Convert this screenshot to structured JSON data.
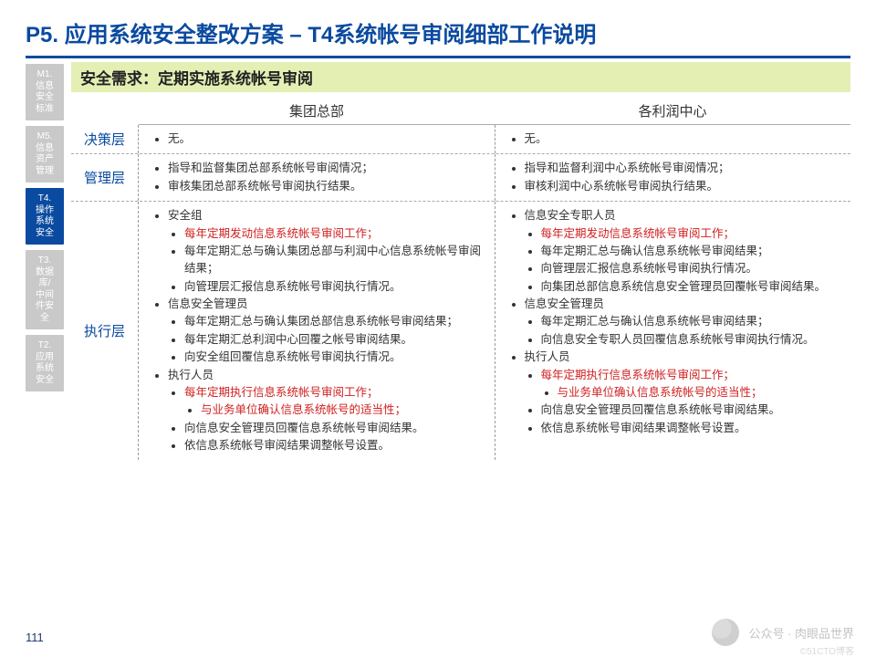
{
  "colors": {
    "title": "#0a4aa0",
    "rule": "#0a4aa0",
    "req_bg": "#e4efb4",
    "req_text": "#222222",
    "nav_inactive": "#c9c9c9",
    "nav_active": "#0a4aa0"
  },
  "title": "P5. 应用系统安全整改方案 – T4系统帐号审阅细部工作说明",
  "requirement": "安全需求：定期实施系统帐号审阅",
  "page_number": "111",
  "sidenav": [
    {
      "label": "M1.\n信息\n安全\n标准",
      "active": false
    },
    {
      "label": "M5.\n信息\n资产\n管理",
      "active": false
    },
    {
      "label": "T4.\n操作\n系统\n安全",
      "active": true
    },
    {
      "label": "T3.\n数据\n库/\n中间\n件安\n全",
      "active": false
    },
    {
      "label": "T2.\n应用\n系统\n安全",
      "active": false
    }
  ],
  "columns": {
    "left": "集团总部",
    "right": "各利润中心"
  },
  "rows": {
    "decision": {
      "label": "决策层",
      "left": [
        {
          "t": "无。"
        }
      ],
      "right": [
        {
          "t": "无。"
        }
      ]
    },
    "manage": {
      "label": "管理层",
      "left": [
        {
          "t": "指导和监督集团总部系统帐号审阅情况；"
        },
        {
          "t": "审核集团总部系统帐号审阅执行结果。"
        }
      ],
      "right": [
        {
          "t": "指导和监督利润中心系统帐号审阅情况；"
        },
        {
          "t": "审核利润中心系统帐号审阅执行结果。"
        }
      ]
    },
    "exec": {
      "label": "执行层",
      "left": [
        {
          "t": "安全组",
          "children": [
            {
              "t": "每年定期发动信息系统帐号审阅工作；",
              "red": true
            },
            {
              "t": "每年定期汇总与确认集团总部与利润中心信息系统帐号审阅结果；"
            },
            {
              "t": "向管理层汇报信息系统帐号审阅执行情况。"
            }
          ]
        },
        {
          "t": "信息安全管理员",
          "children": [
            {
              "t": "每年定期汇总与确认集团总部信息系统帐号审阅结果；"
            },
            {
              "t": "每年定期汇总利润中心回覆之帐号审阅结果。"
            },
            {
              "t": "向安全组回覆信息系统帐号审阅执行情况。"
            }
          ]
        },
        {
          "t": "执行人员",
          "children": [
            {
              "t": "每年定期执行信息系统帐号审阅工作；",
              "red": true,
              "children": [
                {
                  "t": "与业务单位确认信息系统帐号的适当性；",
                  "red": true
                }
              ]
            },
            {
              "t": "向信息安全管理员回覆信息系统帐号审阅结果。"
            },
            {
              "t": "依信息系统帐号审阅结果调整帐号设置。"
            }
          ]
        }
      ],
      "right": [
        {
          "t": "信息安全专职人员",
          "children": [
            {
              "t": "每年定期发动信息系统帐号审阅工作；",
              "red": true
            },
            {
              "t": "每年定期汇总与确认信息系统帐号审阅结果；"
            },
            {
              "t": "向管理层汇报信息系统帐号审阅执行情况。"
            },
            {
              "t": "向集团总部信息系统信息安全管理员回覆帐号审阅结果。"
            }
          ]
        },
        {
          "t": "信息安全管理员",
          "children": [
            {
              "t": "每年定期汇总与确认信息系统帐号审阅结果；"
            },
            {
              "t": "向信息安全专职人员回覆信息系统帐号审阅执行情况。"
            }
          ]
        },
        {
          "t": "执行人员",
          "children": [
            {
              "t": "每年定期执行信息系统帐号审阅工作；",
              "red": true,
              "children": [
                {
                  "t": "与业务单位确认信息系统帐号的适当性；",
                  "red": true
                }
              ]
            },
            {
              "t": "向信息安全管理员回覆信息系统帐号审阅结果。"
            },
            {
              "t": "依信息系统帐号审阅结果调整帐号设置。"
            }
          ]
        }
      ]
    }
  },
  "watermark": {
    "main": "公众号 · 肉眼品世界",
    "sub": "©51CTO博客"
  }
}
